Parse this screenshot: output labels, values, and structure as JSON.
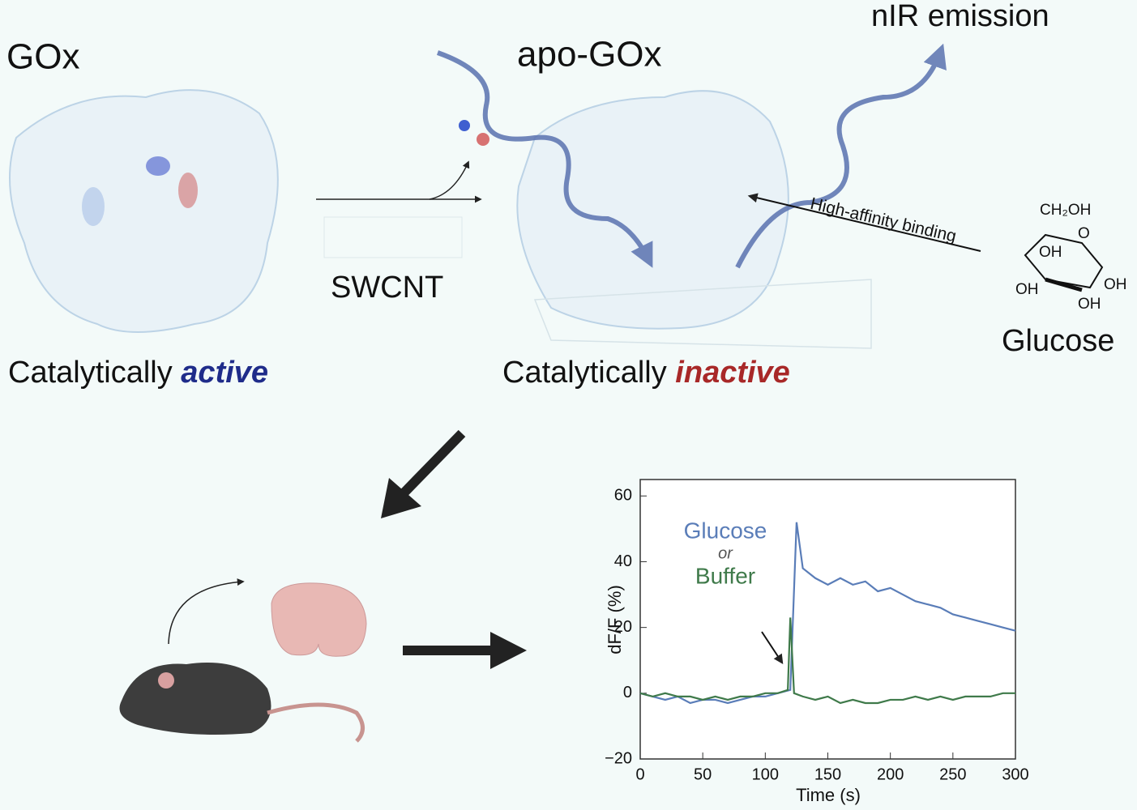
{
  "labels": {
    "gox": "GOx",
    "apo_gox": "apo-GOx",
    "nir": "nIR emission",
    "swcnt": "SWCNT",
    "active_prefix": "Catalytically",
    "active_word": "active",
    "inactive_prefix": "Catalytically",
    "inactive_word": "inactive",
    "binding": "High-affinity binding",
    "glucose": "Glucose"
  },
  "molecule": {
    "ch2oh": "CH₂OH",
    "ring_o": "O",
    "oh_1": "OH",
    "oh_2": "OH",
    "oh_3": "OH",
    "oh_4": "OH"
  },
  "chart_data": {
    "type": "line",
    "xlabel": "Time (s)",
    "ylabel": "dF/F (%)",
    "legend_or": "or",
    "xlim": [
      0,
      300
    ],
    "ylim": [
      -20,
      65
    ],
    "xticks": [
      0,
      50,
      100,
      150,
      200,
      250,
      300
    ],
    "yticks": [
      {
        "value": -20,
        "label": "−20"
      },
      0,
      20,
      40,
      60
    ],
    "series": [
      {
        "name": "Glucose",
        "color": "#5a7db8",
        "x": [
          0,
          10,
          20,
          30,
          40,
          50,
          60,
          70,
          80,
          90,
          100,
          110,
          120,
          125,
          130,
          140,
          150,
          160,
          170,
          180,
          190,
          200,
          210,
          220,
          230,
          240,
          250,
          260,
          270,
          280,
          290,
          300
        ],
        "values": [
          0,
          -1,
          -2,
          -1,
          -3,
          -2,
          -2,
          -3,
          -2,
          -1,
          -1,
          0,
          1,
          52,
          38,
          35,
          33,
          35,
          33,
          34,
          31,
          32,
          30,
          28,
          27,
          26,
          24,
          23,
          22,
          21,
          20,
          19
        ]
      },
      {
        "name": "Buffer",
        "color": "#3f7a4a",
        "x": [
          0,
          10,
          20,
          30,
          40,
          50,
          60,
          70,
          80,
          90,
          100,
          110,
          118,
          120,
          123,
          130,
          140,
          150,
          160,
          170,
          180,
          190,
          200,
          210,
          220,
          230,
          240,
          250,
          260,
          270,
          280,
          290,
          300
        ],
        "values": [
          0,
          -1,
          0,
          -1,
          -1,
          -2,
          -1,
          -2,
          -1,
          -1,
          0,
          0,
          1,
          23,
          0,
          -1,
          -2,
          -1,
          -3,
          -2,
          -3,
          -3,
          -2,
          -2,
          -1,
          -2,
          -1,
          -2,
          -1,
          -1,
          -1,
          0,
          0
        ]
      }
    ]
  }
}
